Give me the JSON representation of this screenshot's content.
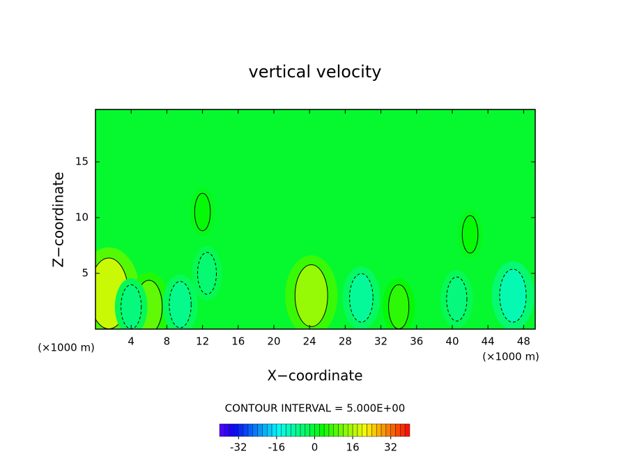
{
  "chart_data": {
    "type": "contour",
    "title": "vertical velocity",
    "x_label": "X−coordinate",
    "y_label": "Z−coordinate",
    "x_unit_label": "(×1000 m)",
    "contour_interval_label": "CONTOUR INTERVAL = 5.000E+00",
    "xlim": [
      0,
      49.3
    ],
    "ylim": [
      0,
      19.7
    ],
    "xticks": [
      4,
      8,
      12,
      16,
      20,
      24,
      28,
      32,
      36,
      40,
      44,
      48
    ],
    "yticks": [
      5,
      10,
      15
    ],
    "clim": [
      -40,
      40
    ],
    "cticks": [
      -32,
      -16,
      0,
      16,
      32
    ],
    "extrema": [
      {
        "x": 1.5,
        "y": 3.2,
        "value": 18
      },
      {
        "x": 6,
        "y": 2,
        "value": 10
      },
      {
        "x": 4,
        "y": 2,
        "value": -6
      },
      {
        "x": 9.5,
        "y": 2.2,
        "value": -7
      },
      {
        "x": 12.5,
        "y": 5,
        "value": -5
      },
      {
        "x": 24.2,
        "y": 3,
        "value": 14
      },
      {
        "x": 29.8,
        "y": 2.8,
        "value": -8
      },
      {
        "x": 34,
        "y": 2,
        "value": 6
      },
      {
        "x": 40.5,
        "y": 2.7,
        "value": -6
      },
      {
        "x": 46.8,
        "y": 3,
        "value": -10
      },
      {
        "x": 12,
        "y": 10.5,
        "value": 3
      },
      {
        "x": 42,
        "y": 8.5,
        "value": 3
      }
    ]
  }
}
